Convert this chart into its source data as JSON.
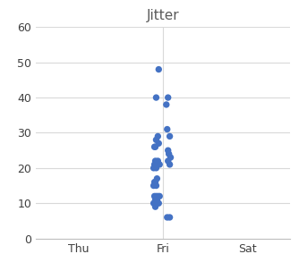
{
  "title": "Jitter",
  "title_color": "#595959",
  "x_categories": [
    "Thu",
    "Fri",
    "Sat"
  ],
  "x_positions": [
    0,
    1,
    2
  ],
  "y_data": [
    48,
    40,
    40,
    38,
    26,
    29,
    28,
    27,
    26,
    22,
    21,
    21,
    22,
    21,
    20,
    20,
    16,
    17,
    16,
    15,
    15,
    12,
    12,
    12,
    12,
    11,
    11,
    10,
    10,
    9,
    31,
    29,
    25,
    24,
    23,
    22,
    21,
    6,
    6
  ],
  "x_jitter": [
    -0.05,
    -0.08,
    0.06,
    0.04,
    -0.1,
    -0.06,
    -0.08,
    -0.05,
    -0.09,
    -0.09,
    -0.07,
    -0.04,
    -0.06,
    -0.1,
    -0.08,
    -0.11,
    -0.09,
    -0.07,
    -0.1,
    -0.08,
    -0.11,
    -0.1,
    -0.08,
    -0.06,
    -0.04,
    -0.09,
    -0.07,
    -0.05,
    -0.11,
    -0.09,
    0.05,
    0.08,
    0.06,
    0.07,
    0.09,
    0.06,
    0.08,
    0.05,
    0.08
  ],
  "dot_color": "#4472C4",
  "dot_size": 28,
  "ylim": [
    0,
    60
  ],
  "yticks": [
    0,
    10,
    20,
    30,
    40,
    50,
    60
  ],
  "xlim": [
    -0.5,
    2.5
  ],
  "grid_color": "#D9D9D9",
  "background_color": "#FFFFFF",
  "title_fontsize": 11,
  "tick_fontsize": 9,
  "spine_color": "#BFBFBF"
}
